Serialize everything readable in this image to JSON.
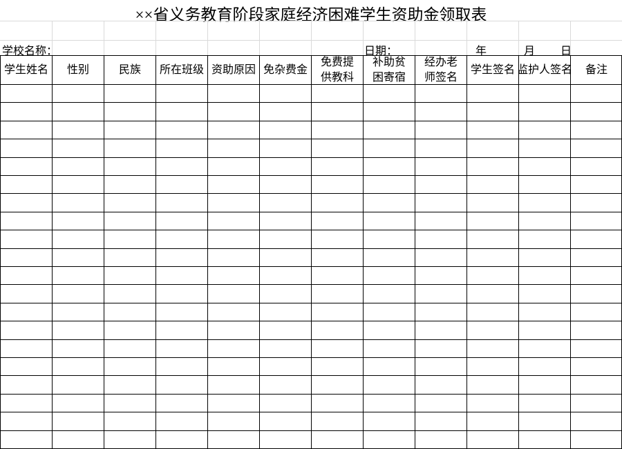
{
  "header": {
    "title": "××省义务教育阶段家庭经济困难学生资助金领取表"
  },
  "info": {
    "school_label": "学校名称：",
    "date_label": "日期：",
    "year": "年",
    "month": "月",
    "day": "日"
  },
  "table": {
    "columns": [
      "学生姓名",
      "性别",
      "民族",
      "所在班级",
      "资助原因",
      "免杂费金",
      "免费提供教科",
      "补助贫困寄宿",
      "经办老师签名",
      "学生签名",
      "监护人签名",
      "备注"
    ]
  }
}
